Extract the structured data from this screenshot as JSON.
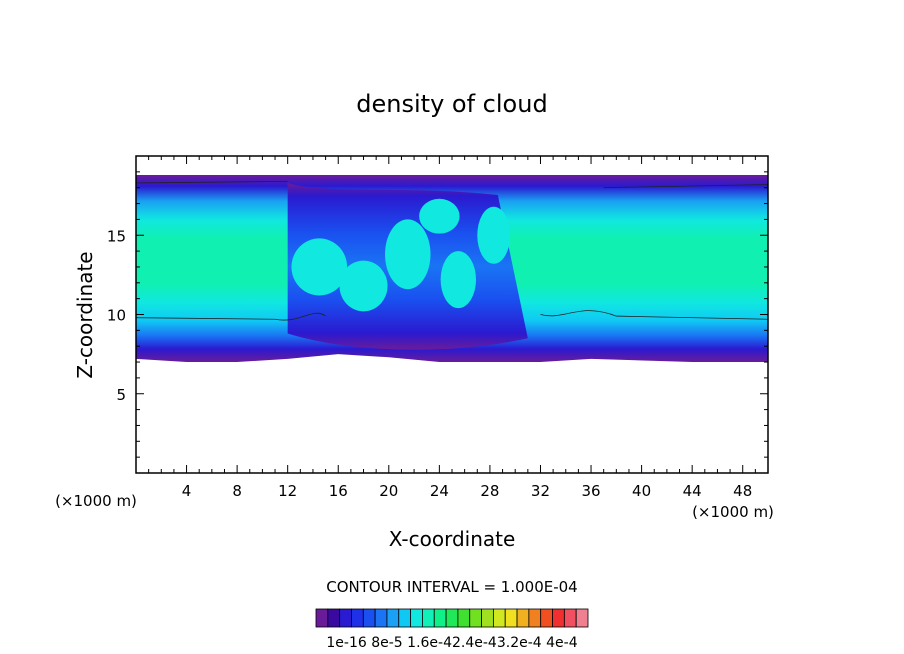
{
  "chart_data": {
    "type": "heatmap",
    "title": "density of cloud",
    "xlabel": "X-coordinate",
    "ylabel": "Z-coordinate",
    "x_unit": "(×1000 m)",
    "z_unit": "(×1000 m)",
    "xlim": [
      0,
      50
    ],
    "ylim": [
      0,
      20
    ],
    "x_ticks": [
      4,
      8,
      12,
      16,
      20,
      24,
      28,
      32,
      36,
      40,
      44,
      48
    ],
    "y_ticks": [
      5,
      10,
      15
    ],
    "contour_interval_label": "CONTOUR INTERVAL = 1.000E-04",
    "colorbar": {
      "colors": [
        "#6a1b9a",
        "#3a0aa0",
        "#2a1ad0",
        "#1e30e8",
        "#1a50f0",
        "#1a74f4",
        "#1aa0f4",
        "#10c8f4",
        "#10e8e0",
        "#10f0b8",
        "#10f088",
        "#20e858",
        "#40e030",
        "#70e020",
        "#a0e020",
        "#d0e820",
        "#f0e020",
        "#f0b020",
        "#f08020",
        "#f05020",
        "#f03030",
        "#f05060",
        "#f08090"
      ],
      "labels": [
        "1e-16",
        "8e-5",
        "1.6e-4",
        "2.4e-4",
        "3.2e-4",
        "4e-4"
      ]
    },
    "colorbar_labels_text": "1e-16 8e-5 1.6e-42.4e-43.2e-4 4e-4",
    "cloud_layer": {
      "base_z": [
        7.2,
        7.0,
        7.0,
        7.2,
        7.5,
        7.3,
        7.0,
        7.0,
        7.0,
        7.2,
        7.0,
        7.0
      ],
      "base_x": [
        0,
        4,
        8,
        12,
        16,
        20,
        24,
        28,
        32,
        36,
        44,
        50
      ],
      "top_z": 18.8
    }
  }
}
